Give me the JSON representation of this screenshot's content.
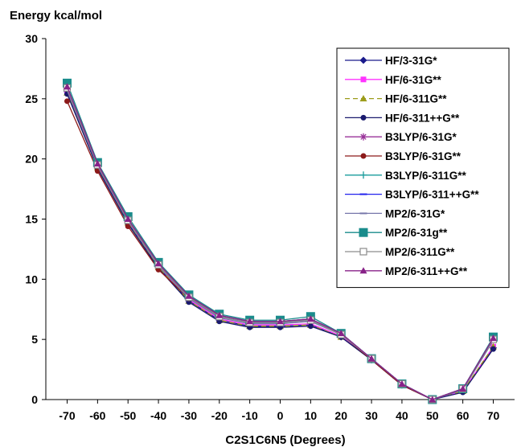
{
  "chart_data": {
    "type": "line",
    "title": "",
    "ylabel": "Energy kcal/mol",
    "xlabel": "C2S1C6N5 (Degrees)",
    "x": [
      -70,
      -60,
      -50,
      -40,
      -30,
      -20,
      -10,
      0,
      10,
      20,
      30,
      40,
      50,
      60,
      70
    ],
    "xlim": [
      -77,
      77
    ],
    "ylim": [
      0,
      30
    ],
    "yticks": [
      "0",
      "5",
      "10",
      "15",
      "20",
      "25",
      "30"
    ],
    "xticks": [
      "-70",
      "-60",
      "-50",
      "-40",
      "-30",
      "-20",
      "-10",
      "0",
      "10",
      "20",
      "30",
      "40",
      "50",
      "60",
      "70"
    ],
    "grid": false,
    "legend": "top-right",
    "series": [
      {
        "name": "HF/3-31G*",
        "color": "#1a1a8c",
        "marker": "diamond",
        "dash": "",
        "values": [
          25.6,
          19.3,
          14.7,
          11.0,
          8.2,
          6.6,
          6.1,
          6.1,
          6.2,
          5.2,
          3.3,
          1.2,
          0,
          0.7,
          4.3
        ]
      },
      {
        "name": "HF/6-31G**",
        "color": "#ff33ff",
        "marker": "square",
        "dash": "",
        "values": [
          25.7,
          19.4,
          14.8,
          11.1,
          8.3,
          6.7,
          6.2,
          6.2,
          6.3,
          5.3,
          3.3,
          1.2,
          0,
          0.7,
          4.4
        ]
      },
      {
        "name": "HF/6-311G**",
        "color": "#9c9c1a",
        "marker": "triangle",
        "dash": "6,4",
        "values": [
          25.5,
          19.3,
          14.7,
          11.0,
          8.2,
          6.6,
          6.1,
          6.1,
          6.2,
          5.2,
          3.3,
          1.2,
          0,
          0.7,
          4.4
        ]
      },
      {
        "name": "HF/6-311++G**",
        "color": "#1a1a6e",
        "marker": "circle",
        "dash": "",
        "values": [
          25.4,
          19.2,
          14.6,
          10.9,
          8.1,
          6.5,
          6.0,
          6.0,
          6.1,
          5.2,
          3.3,
          1.2,
          0,
          0.6,
          4.2
        ]
      },
      {
        "name": "B3LYP/6-31G*",
        "color": "#993399",
        "marker": "asterisk",
        "dash": "",
        "values": [
          25.9,
          19.6,
          15.0,
          11.3,
          8.6,
          7.0,
          6.5,
          6.5,
          6.7,
          5.5,
          3.4,
          1.3,
          0,
          0.9,
          5.1
        ]
      },
      {
        "name": "B3LYP/6-31G**",
        "color": "#8c1a1a",
        "marker": "circle",
        "dash": "",
        "values": [
          24.8,
          19.0,
          14.4,
          10.8,
          8.4,
          6.9,
          6.4,
          6.4,
          6.6,
          5.4,
          3.3,
          1.2,
          0,
          0.9,
          5.0
        ]
      },
      {
        "name": "B3LYP/6-311G**",
        "color": "#1a9c9c",
        "marker": "plus",
        "dash": "",
        "values": [
          26.0,
          19.6,
          15.0,
          11.3,
          8.6,
          7.0,
          6.5,
          6.5,
          6.7,
          5.5,
          3.4,
          1.3,
          0,
          0.9,
          5.1
        ]
      },
      {
        "name": "B3LYP/6-311++G**",
        "color": "#2222ee",
        "marker": "dash",
        "dash": "",
        "values": [
          25.8,
          19.5,
          14.9,
          11.2,
          8.5,
          6.9,
          6.4,
          6.4,
          6.6,
          5.4,
          3.4,
          1.3,
          0,
          0.9,
          5.0
        ]
      },
      {
        "name": "MP2/6-31G*",
        "color": "#7777aa",
        "marker": "dash",
        "dash": "",
        "values": [
          25.7,
          19.4,
          14.8,
          11.1,
          8.4,
          6.8,
          6.3,
          6.3,
          6.5,
          5.4,
          3.4,
          1.3,
          0,
          0.8,
          4.9
        ]
      },
      {
        "name": "MP2/6-31g**",
        "color": "#1a8c8c",
        "marker": "bigsquare",
        "dash": "",
        "values": [
          26.3,
          19.7,
          15.2,
          11.4,
          8.7,
          7.1,
          6.6,
          6.6,
          6.9,
          5.5,
          3.4,
          1.3,
          0,
          0.9,
          5.2
        ]
      },
      {
        "name": "MP2/6-311G**",
        "color": "#8c8c8c",
        "marker": "opensquare",
        "dash": "",
        "values": [
          25.9,
          19.5,
          14.9,
          11.2,
          8.5,
          6.9,
          6.4,
          6.4,
          6.6,
          5.4,
          3.4,
          1.3,
          0,
          0.9,
          5.0
        ]
      },
      {
        "name": "MP2/6-311++G**",
        "color": "#882288",
        "marker": "triangle",
        "dash": "",
        "values": [
          26.0,
          19.6,
          15.0,
          11.3,
          8.6,
          7.0,
          6.5,
          6.5,
          6.7,
          5.5,
          3.4,
          1.3,
          0,
          0.9,
          5.1
        ]
      }
    ]
  }
}
